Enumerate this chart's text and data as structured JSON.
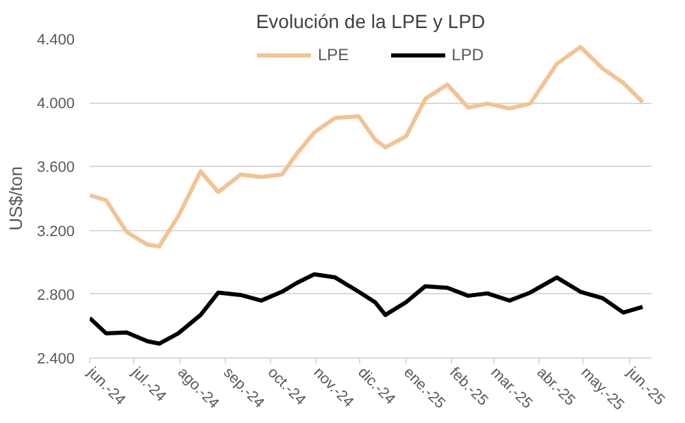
{
  "chart_data": {
    "type": "line",
    "title": "Evolución de la LPE y LPD",
    "ylabel": "US$/ton",
    "x": [
      "2024-06-01",
      "2024-06-12",
      "2024-06-26",
      "2024-07-10",
      "2024-07-18",
      "2024-07-31",
      "2024-08-15",
      "2024-08-27",
      "2024-09-11",
      "2024-09-25",
      "2024-10-09",
      "2024-10-19",
      "2024-10-31",
      "2024-11-14",
      "2024-11-30",
      "2024-12-11",
      "2024-12-18",
      "2025-01-01",
      "2025-01-14",
      "2025-01-29",
      "2025-02-12",
      "2025-02-25",
      "2025-03-12",
      "2025-03-26",
      "2025-04-13",
      "2025-04-29",
      "2025-05-14",
      "2025-05-28",
      "2025-06-10"
    ],
    "series": [
      {
        "name": "LPE",
        "color": "#f2c394",
        "values": [
          3420,
          3390,
          3190,
          3110,
          3100,
          3290,
          3570,
          3440,
          3550,
          3535,
          3550,
          3680,
          3815,
          3905,
          3915,
          3770,
          3720,
          3790,
          4025,
          4115,
          3970,
          3995,
          3965,
          3995,
          4245,
          4350,
          4215,
          4125,
          4005
        ]
      },
      {
        "name": "LPD",
        "color": "#000000",
        "values": [
          2650,
          2555,
          2560,
          2505,
          2490,
          2555,
          2670,
          2810,
          2795,
          2760,
          2815,
          2870,
          2925,
          2905,
          2815,
          2750,
          2670,
          2750,
          2850,
          2840,
          2790,
          2805,
          2760,
          2810,
          2905,
          2815,
          2775,
          2685,
          2720
        ]
      }
    ],
    "xlim": [
      "2024-06-01",
      "2025-06-16"
    ],
    "xticks": [
      {
        "value": "2024-06-01",
        "label": "jun.-24"
      },
      {
        "value": "2024-07-01",
        "label": "jul.-24"
      },
      {
        "value": "2024-08-01",
        "label": "ago.-24"
      },
      {
        "value": "2024-09-01",
        "label": "sep.-24"
      },
      {
        "value": "2024-10-01",
        "label": "oct.-24"
      },
      {
        "value": "2024-11-01",
        "label": "nov.-24"
      },
      {
        "value": "2024-12-01",
        "label": "dic.-24"
      },
      {
        "value": "2025-01-01",
        "label": "ene.-25"
      },
      {
        "value": "2025-02-01",
        "label": "feb.-25"
      },
      {
        "value": "2025-03-01",
        "label": "mar.-25"
      },
      {
        "value": "2025-04-01",
        "label": "abr.-25"
      },
      {
        "value": "2025-05-01",
        "label": "may.-25"
      },
      {
        "value": "2025-06-01",
        "label": "jun.-25"
      }
    ],
    "ylim": [
      2400,
      4400
    ],
    "yticks": [
      {
        "value": 2400,
        "label": "2.400"
      },
      {
        "value": 2800,
        "label": "2.800"
      },
      {
        "value": 3200,
        "label": "3.200"
      },
      {
        "value": 3600,
        "label": "3.600"
      },
      {
        "value": 4000,
        "label": "4.000"
      },
      {
        "value": 4400,
        "label": "4.400"
      }
    ],
    "grid": "y",
    "legend": "top",
    "marker": "none",
    "line_style": "solid"
  }
}
